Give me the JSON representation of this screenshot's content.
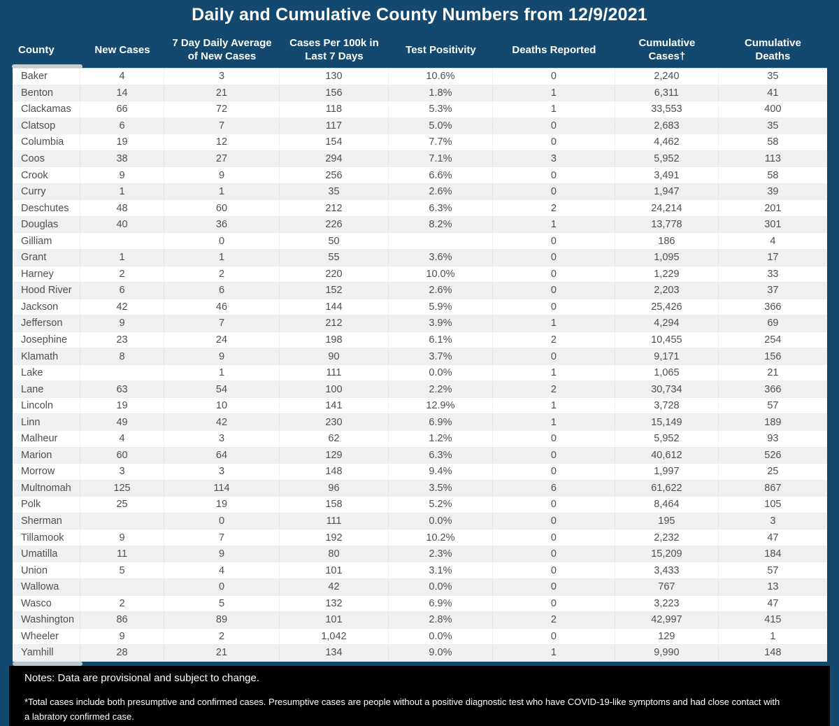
{
  "title": "Daily and Cumulative County Numbers from 12/9/2021",
  "colors": {
    "background": "#14496F",
    "header_text": "#FFFFFF",
    "row_white": "#FFFFFF",
    "row_alt": "#F0F0F0",
    "cell_text": "#4F4F4F",
    "notes_bg": "#000000",
    "notes_text": "#FFFFFF",
    "scrollbar_thumb": "#C3CCD3"
  },
  "chart_data": {
    "type": "table",
    "title": "Daily and Cumulative County Numbers from 12/9/2021",
    "columns": [
      "County",
      "New Cases",
      "7 Day Daily Average\nof New Cases",
      "Cases Per 100k in\nLast 7 Days",
      "Test Positivity",
      "Deaths Reported",
      "Cumulative\nCases†",
      "Cumulative\nDeaths"
    ],
    "rows": [
      [
        "Baker",
        "4",
        "3",
        "130",
        "10.6%",
        "0",
        "2,240",
        "35"
      ],
      [
        "Benton",
        "14",
        "21",
        "156",
        "1.8%",
        "1",
        "6,311",
        "41"
      ],
      [
        "Clackamas",
        "66",
        "72",
        "118",
        "5.3%",
        "1",
        "33,553",
        "400"
      ],
      [
        "Clatsop",
        "6",
        "7",
        "117",
        "5.0%",
        "0",
        "2,683",
        "35"
      ],
      [
        "Columbia",
        "19",
        "12",
        "154",
        "7.7%",
        "0",
        "4,462",
        "58"
      ],
      [
        "Coos",
        "38",
        "27",
        "294",
        "7.1%",
        "3",
        "5,952",
        "113"
      ],
      [
        "Crook",
        "9",
        "9",
        "256",
        "6.6%",
        "0",
        "3,491",
        "58"
      ],
      [
        "Curry",
        "1",
        "1",
        "35",
        "2.6%",
        "0",
        "1,947",
        "39"
      ],
      [
        "Deschutes",
        "48",
        "60",
        "212",
        "6.3%",
        "2",
        "24,214",
        "201"
      ],
      [
        "Douglas",
        "40",
        "36",
        "226",
        "8.2%",
        "1",
        "13,778",
        "301"
      ],
      [
        "Gilliam",
        "",
        "0",
        "50",
        "",
        "0",
        "186",
        "4"
      ],
      [
        "Grant",
        "1",
        "1",
        "55",
        "3.6%",
        "0",
        "1,095",
        "17"
      ],
      [
        "Harney",
        "2",
        "2",
        "220",
        "10.0%",
        "0",
        "1,229",
        "33"
      ],
      [
        "Hood River",
        "6",
        "6",
        "152",
        "2.6%",
        "0",
        "2,203",
        "37"
      ],
      [
        "Jackson",
        "42",
        "46",
        "144",
        "5.9%",
        "0",
        "25,426",
        "366"
      ],
      [
        "Jefferson",
        "9",
        "7",
        "212",
        "3.9%",
        "1",
        "4,294",
        "69"
      ],
      [
        "Josephine",
        "23",
        "24",
        "198",
        "6.1%",
        "2",
        "10,455",
        "254"
      ],
      [
        "Klamath",
        "8",
        "9",
        "90",
        "3.7%",
        "0",
        "9,171",
        "156"
      ],
      [
        "Lake",
        "",
        "1",
        "111",
        "0.0%",
        "1",
        "1,065",
        "21"
      ],
      [
        "Lane",
        "63",
        "54",
        "100",
        "2.2%",
        "2",
        "30,734",
        "366"
      ],
      [
        "Lincoln",
        "19",
        "10",
        "141",
        "12.9%",
        "1",
        "3,728",
        "57"
      ],
      [
        "Linn",
        "49",
        "42",
        "230",
        "6.9%",
        "1",
        "15,149",
        "189"
      ],
      [
        "Malheur",
        "4",
        "3",
        "62",
        "1.2%",
        "0",
        "5,952",
        "93"
      ],
      [
        "Marion",
        "60",
        "64",
        "129",
        "6.3%",
        "0",
        "40,612",
        "526"
      ],
      [
        "Morrow",
        "3",
        "3",
        "148",
        "9.4%",
        "0",
        "1,997",
        "25"
      ],
      [
        "Multnomah",
        "125",
        "114",
        "96",
        "3.5%",
        "6",
        "61,622",
        "867"
      ],
      [
        "Polk",
        "25",
        "19",
        "158",
        "5.2%",
        "0",
        "8,464",
        "105"
      ],
      [
        "Sherman",
        "",
        "0",
        "111",
        "0.0%",
        "0",
        "195",
        "3"
      ],
      [
        "Tillamook",
        "9",
        "7",
        "192",
        "10.2%",
        "0",
        "2,232",
        "47"
      ],
      [
        "Umatilla",
        "11",
        "9",
        "80",
        "2.3%",
        "0",
        "15,209",
        "184"
      ],
      [
        "Union",
        "5",
        "4",
        "101",
        "3.1%",
        "0",
        "3,433",
        "57"
      ],
      [
        "Wallowa",
        "",
        "0",
        "42",
        "0.0%",
        "0",
        "767",
        "13"
      ],
      [
        "Wasco",
        "2",
        "5",
        "132",
        "6.9%",
        "0",
        "3,223",
        "47"
      ],
      [
        "Washington",
        "86",
        "89",
        "101",
        "2.8%",
        "2",
        "42,997",
        "415"
      ],
      [
        "Wheeler",
        "9",
        "2",
        "1,042",
        "0.0%",
        "0",
        "129",
        "1"
      ],
      [
        "Yamhill",
        "28",
        "21",
        "134",
        "9.0%",
        "1",
        "9,990",
        "148"
      ]
    ]
  },
  "notes": {
    "provisional": "Notes:  Data are provisional and subject to change.",
    "footnote": "*Total cases include both presumptive and confirmed cases. Presumptive cases are people without a positive diagnostic test who have COVID-19-like symptoms and had close contact with\na labratory confirmed case."
  }
}
